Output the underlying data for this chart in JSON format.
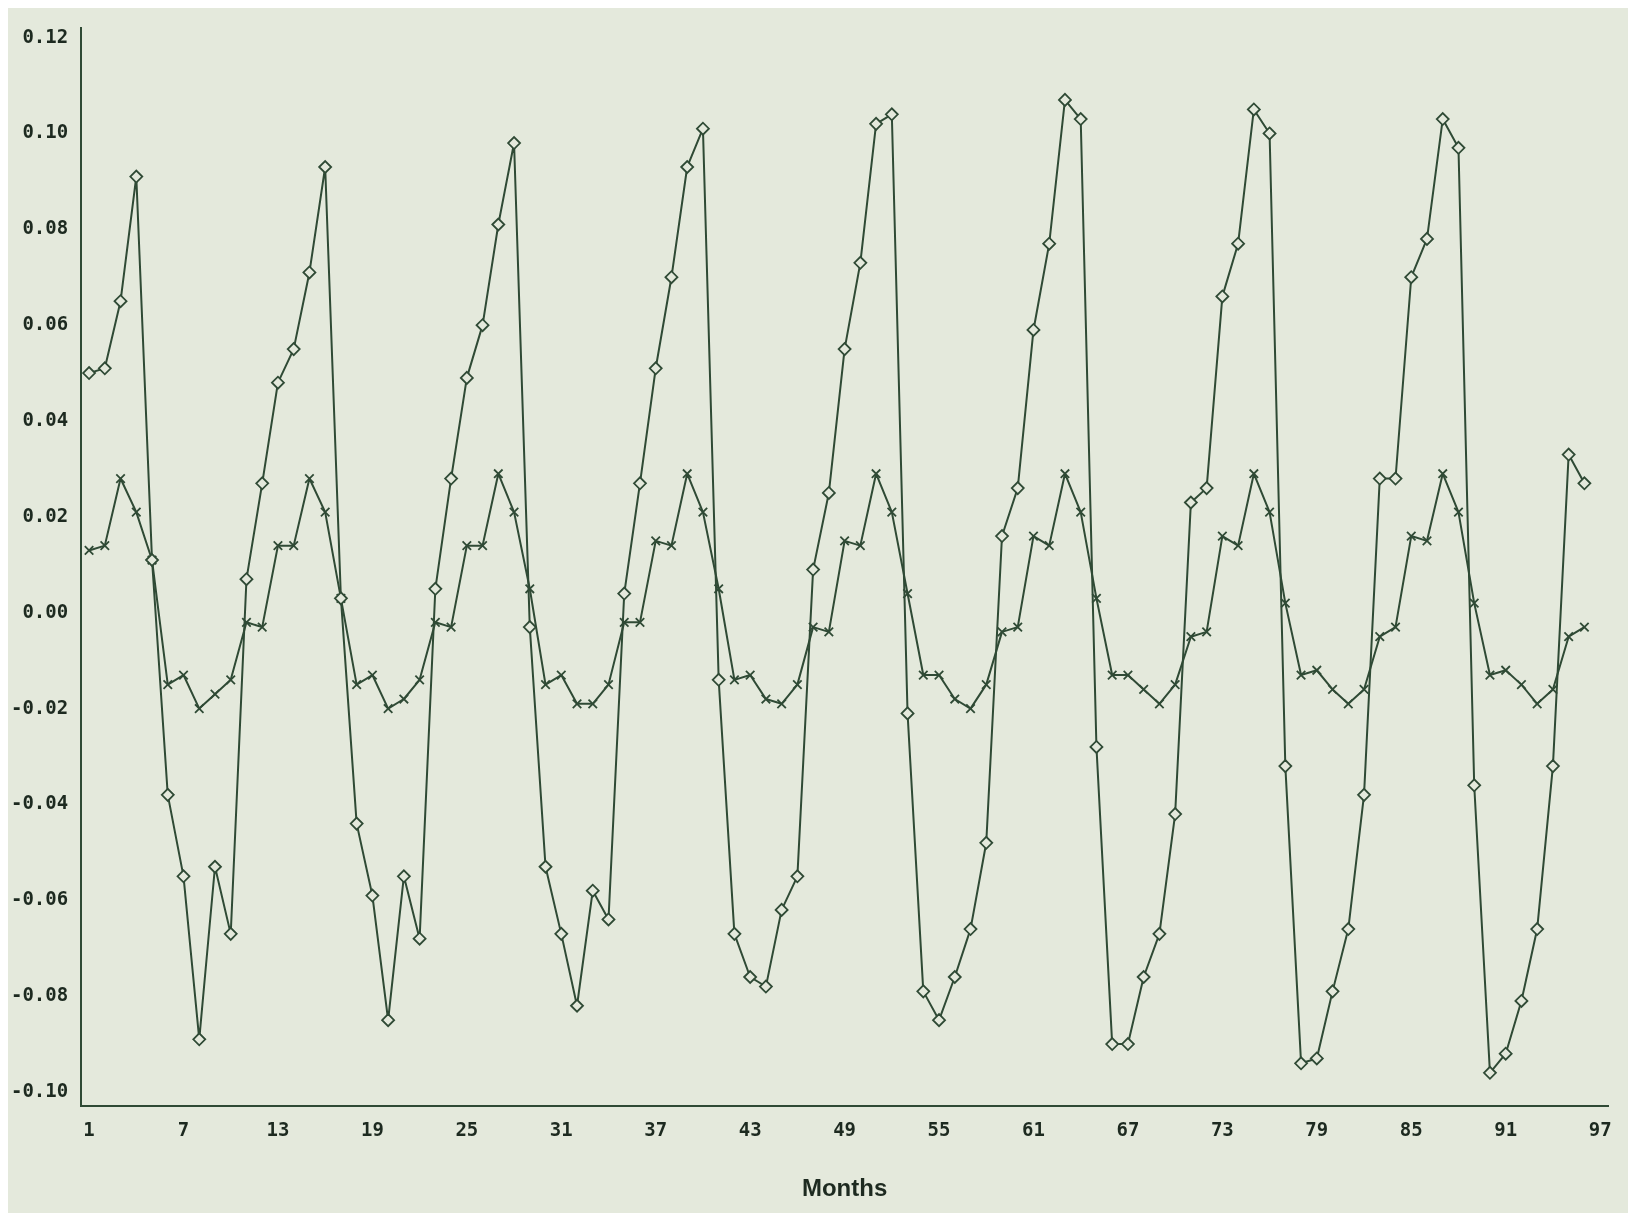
{
  "chart_data": {
    "type": "line",
    "xlabel": "Months",
    "x": [
      1,
      2,
      3,
      4,
      5,
      6,
      7,
      8,
      9,
      10,
      11,
      12,
      13,
      14,
      15,
      16,
      17,
      18,
      19,
      20,
      21,
      22,
      23,
      24,
      25,
      26,
      27,
      28,
      29,
      30,
      31,
      32,
      33,
      34,
      35,
      36,
      37,
      38,
      39,
      40,
      41,
      42,
      43,
      44,
      45,
      46,
      47,
      48,
      49,
      50,
      51,
      52,
      53,
      54,
      55,
      56,
      57,
      58,
      59,
      60,
      61,
      62,
      63,
      64,
      65,
      66,
      67,
      68,
      69,
      70,
      71,
      72,
      73,
      74,
      75,
      76,
      77,
      78,
      79,
      80,
      81,
      82,
      83,
      84,
      85,
      86,
      87,
      88,
      89,
      90,
      91,
      92,
      93,
      94,
      95,
      96
    ],
    "xlim": [
      0.5,
      97.5
    ],
    "xticks": [
      1,
      7,
      13,
      19,
      25,
      31,
      37,
      43,
      49,
      55,
      61,
      67,
      73,
      79,
      85,
      91,
      97
    ],
    "ylim": [
      -0.103,
      0.122
    ],
    "yticks": [
      {
        "value": -0.1,
        "label": "-0.10"
      },
      {
        "value": -0.08,
        "label": "-0.08"
      },
      {
        "value": -0.06,
        "label": "-0.06"
      },
      {
        "value": -0.04,
        "label": "-0.04"
      },
      {
        "value": -0.02,
        "label": "-0.02"
      },
      {
        "value": 0,
        "label": "0.00"
      },
      {
        "value": 0.02,
        "label": "0.02"
      },
      {
        "value": 0.04,
        "label": "0.04"
      },
      {
        "value": 0.06,
        "label": "0.06"
      },
      {
        "value": 0.08,
        "label": "0.08"
      },
      {
        "value": 0.1,
        "label": "0.10"
      },
      {
        "value": 0.12,
        "label": "0.12"
      }
    ],
    "grid": false,
    "legend": false,
    "line_style": "solid",
    "series": [
      {
        "color": "#2f4a35",
        "marker": "diamond",
        "values": [
          0.05,
          0.051,
          0.065,
          0.091,
          0.011,
          -0.038,
          -0.055,
          -0.089,
          -0.053,
          -0.067,
          0.007,
          0.027,
          0.048,
          0.055,
          0.071,
          0.093,
          0.003,
          -0.044,
          -0.059,
          -0.085,
          -0.055,
          -0.068,
          0.005,
          0.028,
          0.049,
          0.06,
          0.081,
          0.098,
          -0.003,
          -0.053,
          -0.067,
          -0.082,
          -0.058,
          -0.064,
          0.004,
          0.027,
          0.051,
          0.07,
          0.093,
          0.101,
          -0.014,
          -0.067,
          -0.076,
          -0.078,
          -0.062,
          -0.055,
          0.009,
          0.025,
          0.055,
          0.073,
          0.102,
          0.104,
          -0.021,
          -0.079,
          -0.085,
          -0.076,
          -0.066,
          -0.048,
          0.016,
          0.026,
          0.059,
          0.077,
          0.107,
          0.103,
          -0.028,
          -0.09,
          -0.09,
          -0.076,
          -0.067,
          -0.042,
          0.023,
          0.026,
          0.066,
          0.077,
          0.105,
          0.1,
          -0.032,
          -0.094,
          -0.093,
          -0.079,
          -0.066,
          -0.038,
          0.028,
          0.028,
          0.07,
          0.078,
          0.103,
          0.097,
          -0.036,
          -0.096,
          -0.092,
          -0.081,
          -0.066,
          -0.032,
          0.033,
          0.027
        ]
      },
      {
        "color": "#2f4a35",
        "marker": "cross",
        "values": [
          0.013,
          0.014,
          0.028,
          0.021,
          0.011,
          -0.015,
          -0.013,
          -0.02,
          -0.017,
          -0.014,
          -0.002,
          -0.003,
          0.014,
          0.014,
          0.028,
          0.021,
          0.003,
          -0.015,
          -0.013,
          -0.02,
          -0.018,
          -0.014,
          -0.002,
          -0.003,
          0.014,
          0.014,
          0.029,
          0.021,
          0.005,
          -0.015,
          -0.013,
          -0.019,
          -0.019,
          -0.015,
          -0.002,
          -0.002,
          0.015,
          0.014,
          0.029,
          0.021,
          0.005,
          -0.014,
          -0.013,
          -0.018,
          -0.019,
          -0.015,
          -0.003,
          -0.004,
          0.015,
          0.014,
          0.029,
          0.021,
          0.004,
          -0.013,
          -0.013,
          -0.018,
          -0.02,
          -0.015,
          -0.004,
          -0.003,
          0.016,
          0.014,
          0.029,
          0.021,
          0.003,
          -0.013,
          -0.013,
          -0.016,
          -0.019,
          -0.015,
          -0.005,
          -0.004,
          0.016,
          0.014,
          0.029,
          0.021,
          0.002,
          -0.013,
          -0.012,
          -0.016,
          -0.019,
          -0.016,
          -0.005,
          -0.003,
          0.016,
          0.015,
          0.029,
          0.021,
          0.002,
          -0.013,
          -0.012,
          -0.015,
          -0.019,
          -0.016,
          -0.005,
          -0.003
        ]
      }
    ]
  }
}
